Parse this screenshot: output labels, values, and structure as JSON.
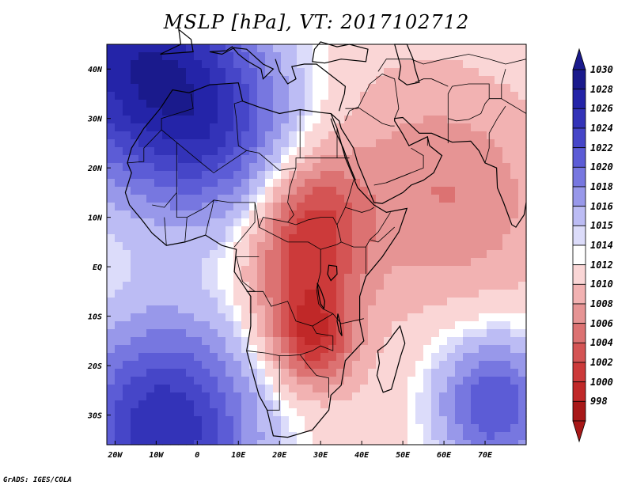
{
  "title": "MSLP [hPa], VT: 2017102712",
  "credit": "GrADS: IGES/COLA",
  "lon_labels": [
    "20W",
    "10W",
    "0",
    "10E",
    "20E",
    "30E",
    "40E",
    "50E",
    "60E",
    "70E"
  ],
  "lon_values": [
    -20,
    -10,
    0,
    10,
    20,
    30,
    40,
    50,
    60,
    70
  ],
  "lat_labels": [
    "40N",
    "30N",
    "20N",
    "10N",
    "EQ",
    "10S",
    "20S",
    "30S"
  ],
  "lat_values": [
    40,
    30,
    20,
    10,
    0,
    -10,
    -20,
    -30
  ],
  "extent": {
    "lon_min": -22,
    "lon_max": 80,
    "lat_min": -36,
    "lat_max": 45
  },
  "colorbar": {
    "levels": [
      "1030",
      "1028",
      "1026",
      "1024",
      "1022",
      "1020",
      "1018",
      "1016",
      "1015",
      "1014",
      "1012",
      "1010",
      "1008",
      "1006",
      "1004",
      "1002",
      "1000",
      "998"
    ],
    "colors": [
      "#1a1a8c",
      "#2424a8",
      "#3333b8",
      "#4646c8",
      "#5c5cd6",
      "#7777e0",
      "#9898ea",
      "#bcbcf4",
      "#dcdcfa",
      "#ffffff",
      "#fad6d6",
      "#f2b2b2",
      "#e69494",
      "#dc7272",
      "#d45454",
      "#cc3a3a",
      "#c02828",
      "#a81818"
    ]
  },
  "pressure_centers": [
    {
      "name": "azores-high",
      "lon": -16,
      "lat": 42,
      "value": 1028,
      "spread": 18
    },
    {
      "name": "sahara-high",
      "lon": 5,
      "lat": 28,
      "value": 1022,
      "spread": 14
    },
    {
      "name": "south-atlantic-high",
      "lon": -8,
      "lat": -33,
      "value": 1028,
      "spread": 16
    },
    {
      "name": "indian-ocean-high",
      "lon": 72,
      "lat": -28,
      "value": 1024,
      "spread": 10
    },
    {
      "name": "congo-low",
      "lon": 26,
      "lat": -2,
      "value": 1006,
      "spread": 10
    },
    {
      "name": "sudan-low",
      "lon": 28,
      "lat": 11,
      "value": 1006,
      "spread": 9
    },
    {
      "name": "zambia-low",
      "lon": 28,
      "lat": -15,
      "value": 1004,
      "spread": 7
    },
    {
      "name": "arabia-low",
      "lon": 52,
      "lat": 18,
      "value": 1010,
      "spread": 15
    },
    {
      "name": "india-low",
      "lon": 68,
      "lat": 12,
      "value": 1010,
      "spread": 14
    }
  ]
}
